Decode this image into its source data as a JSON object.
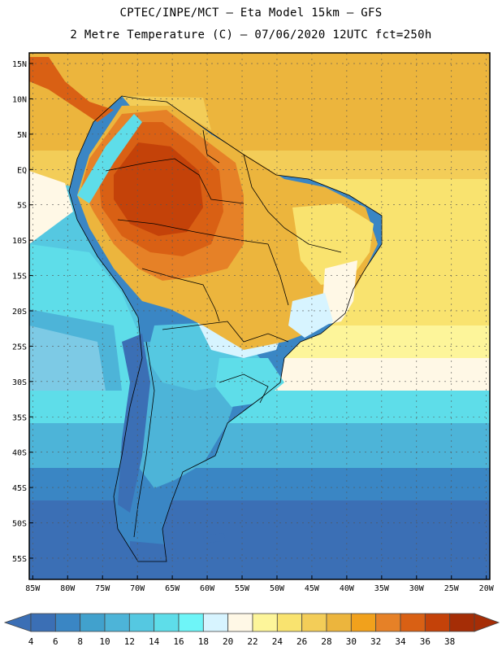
{
  "header": {
    "line1": "CPTEC/INPE/MCT —  Eta Model 15km — GFS",
    "line2": "2 Metre Temperature (C) — 07/06/2020 12UTC fct=250h"
  },
  "map": {
    "lat_labels": [
      "15N",
      "10N",
      "5N",
      "EQ",
      "5S",
      "10S",
      "15S",
      "20S",
      "25S",
      "30S",
      "35S",
      "40S",
      "45S",
      "50S",
      "55S"
    ],
    "lat_values": [
      15,
      10,
      5,
      0,
      -5,
      -10,
      -15,
      -20,
      -25,
      -30,
      -35,
      -40,
      -45,
      -50,
      -55
    ],
    "lon_labels": [
      "85W",
      "80W",
      "75W",
      "70W",
      "65W",
      "60W",
      "55W",
      "50W",
      "45W",
      "40W",
      "35W",
      "30W",
      "25W",
      "20W"
    ],
    "lon_values": [
      -85,
      -80,
      -75,
      -70,
      -65,
      -60,
      -55,
      -50,
      -45,
      -40,
      -35,
      -30,
      -25,
      -20
    ],
    "extent": {
      "lon_min": -85.5,
      "lon_max": -19.5,
      "lat_min": -58,
      "lat_max": 16.5
    }
  },
  "colorbar": {
    "labels": [
      "4",
      "6",
      "8",
      "10",
      "12",
      "14",
      "16",
      "18",
      "20",
      "22",
      "24",
      "26",
      "28",
      "30",
      "32",
      "34",
      "36",
      "38"
    ],
    "colors": [
      "#3b6fb5",
      "#3a86c4",
      "#41a1cd",
      "#4db4d8",
      "#55c8e1",
      "#5edde9",
      "#6ef5f8",
      "#d7f4ff",
      "#fff8e6",
      "#fdf59a",
      "#f9e36f",
      "#f3cd58",
      "#ecb53d",
      "#f1a11c",
      "#e68127",
      "#d96014",
      "#c44209",
      "#a52d06"
    ],
    "left_arrow_color": "#3b6fb5",
    "right_arrow_color": "#a52d06"
  }
}
